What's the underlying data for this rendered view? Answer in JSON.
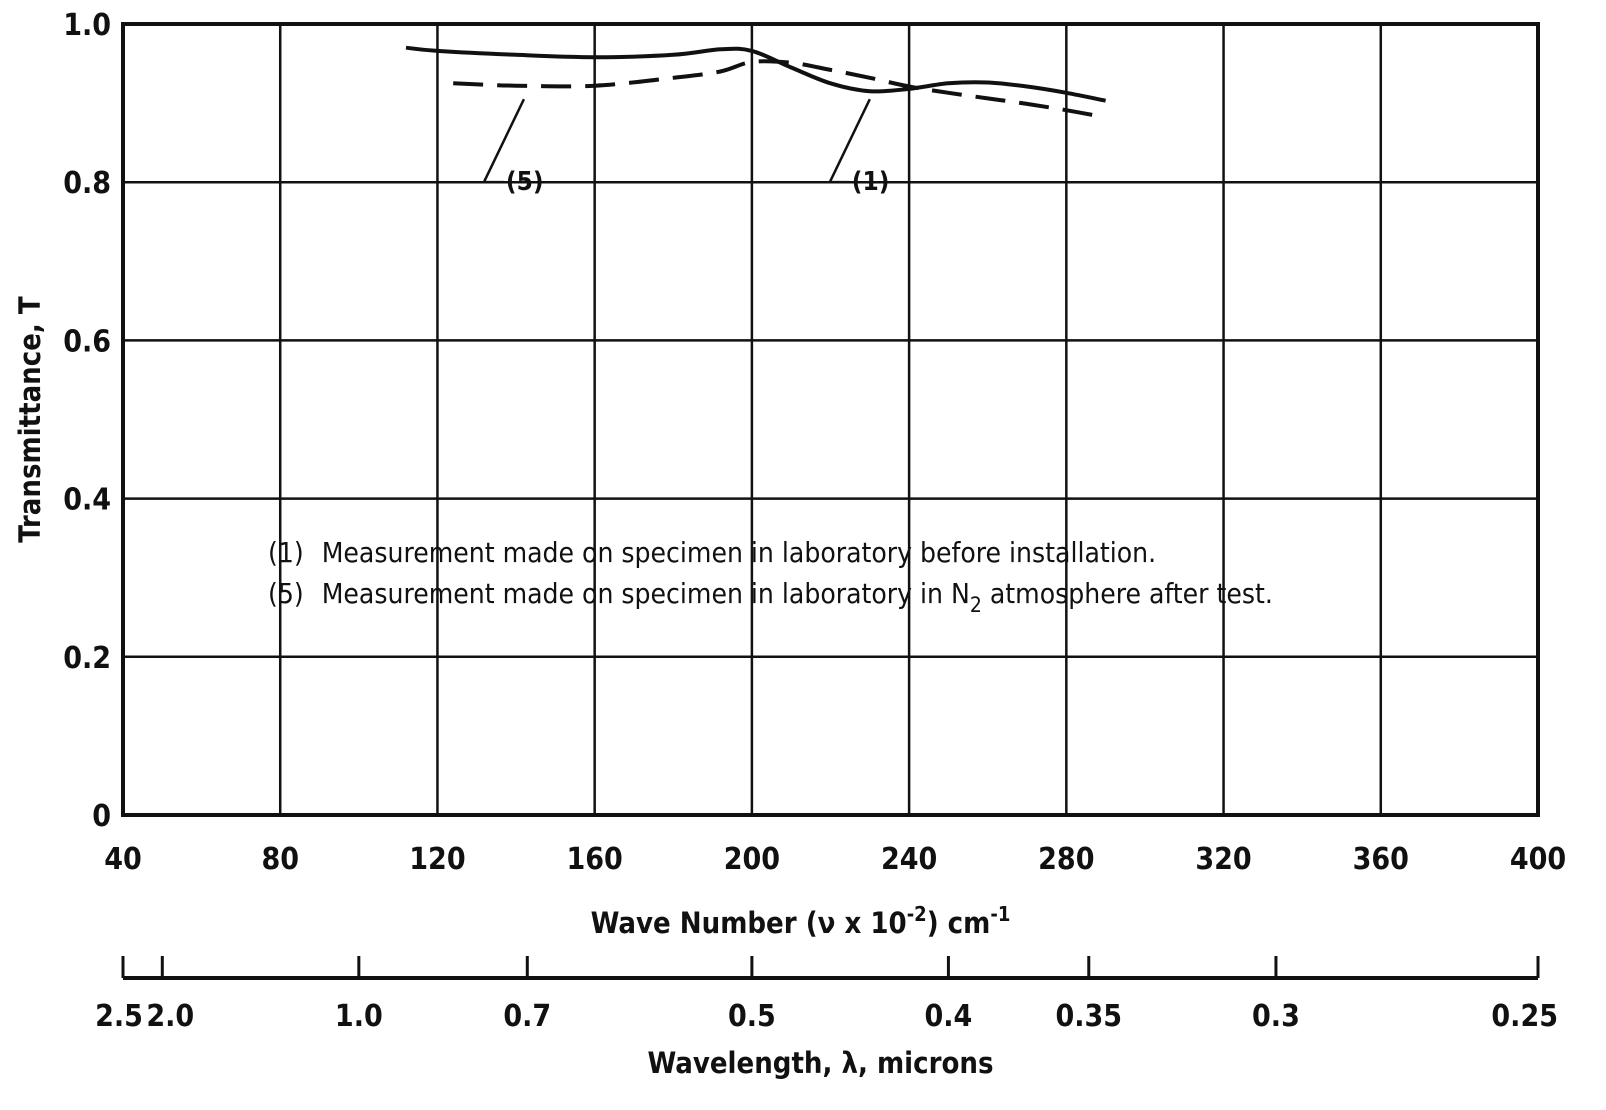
{
  "chart_data": {
    "type": "line",
    "title": "",
    "xlabel": "Wave Number (ν x 10",
    "xlabel_exponent": "-2",
    "xlabel_units": ") cm",
    "xlabel_units_exponent": "-1",
    "ylabel": "Transmittance, T",
    "xlim": [
      40,
      400
    ],
    "ylim": [
      0,
      1.0
    ],
    "xticks": [
      40,
      80,
      120,
      160,
      200,
      240,
      280,
      320,
      360,
      400
    ],
    "xtick_labels": [
      "40",
      "80",
      "120",
      "160",
      "200",
      "240",
      "280",
      "320",
      "360",
      "400"
    ],
    "yticks": [
      0,
      0.2,
      0.4,
      0.6,
      0.8,
      1.0
    ],
    "ytick_labels": [
      "0",
      "0.2",
      "0.4",
      "0.6",
      "0.8",
      "1.0"
    ],
    "grid": true,
    "secondary_axis": {
      "label": "Wavelength, λ, microns",
      "ticks": [
        {
          "wavenumber": 40,
          "label": "2.5"
        },
        {
          "wavenumber": 50,
          "label": "2.0"
        },
        {
          "wavenumber": 100,
          "label": "1.0"
        },
        {
          "wavenumber": 142.86,
          "label": "0.7"
        },
        {
          "wavenumber": 200,
          "label": "0.5"
        },
        {
          "wavenumber": 250,
          "label": "0.4"
        },
        {
          "wavenumber": 285.71,
          "label": "0.35"
        },
        {
          "wavenumber": 333.33,
          "label": "0.3"
        },
        {
          "wavenumber": 400,
          "label": "0.25"
        }
      ]
    },
    "legend": {
      "placement": "center-left",
      "entries": [
        {
          "marker": "(1)",
          "text": "Measurement made on specimen in laboratory before installation."
        },
        {
          "marker": "(5)",
          "text": "Measurement made on specimen in laboratory in N",
          "subscript": "2",
          "text_after": " atmosphere after test."
        }
      ]
    },
    "series": [
      {
        "name": "(1)",
        "style": "solid",
        "x": [
          112,
          120,
          140,
          160,
          180,
          192,
          200,
          210,
          220,
          230,
          240,
          250,
          260,
          270,
          280,
          290
        ],
        "y": [
          0.97,
          0.966,
          0.961,
          0.958,
          0.961,
          0.968,
          0.966,
          0.945,
          0.925,
          0.915,
          0.918,
          0.925,
          0.926,
          0.921,
          0.913,
          0.903
        ]
      },
      {
        "name": "(5)",
        "style": "dashed",
        "x": [
          124,
          140,
          160,
          180,
          192,
          200,
          210,
          220,
          230,
          240,
          250,
          260,
          270,
          280,
          290
        ],
        "y": [
          0.925,
          0.922,
          0.922,
          0.932,
          0.94,
          0.952,
          0.951,
          0.942,
          0.932,
          0.921,
          0.913,
          0.906,
          0.899,
          0.891,
          0.882
        ]
      }
    ]
  }
}
